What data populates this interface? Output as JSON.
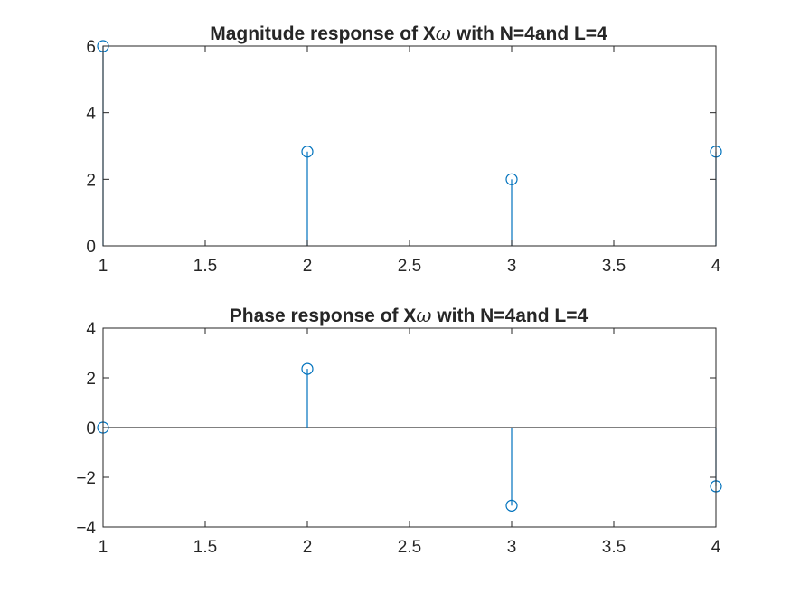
{
  "chart_data": [
    {
      "type": "stem",
      "title_prefix": "Magnitude response of X",
      "title_symbol": "ω",
      "title_suffix": " with N=4and L=4",
      "xlabel": "",
      "ylabel": "",
      "xlim": [
        1,
        4
      ],
      "ylim": [
        0,
        6
      ],
      "x_ticks": [
        "1",
        "1.5",
        "2",
        "2.5",
        "3",
        "3.5",
        "4"
      ],
      "y_ticks": [
        "0",
        "2",
        "4",
        "6"
      ],
      "x": [
        1,
        2,
        3,
        4
      ],
      "values": [
        6,
        2.83,
        2,
        2.83
      ],
      "baseline": 0,
      "grid": false,
      "color": "#0072bd"
    },
    {
      "type": "stem",
      "title_prefix": "Phase response of X",
      "title_symbol": "ω",
      "title_suffix": " with N=4and L=4",
      "xlabel": "",
      "ylabel": "",
      "xlim": [
        1,
        4
      ],
      "ylim": [
        -4,
        4
      ],
      "x_ticks": [
        "1",
        "1.5",
        "2",
        "2.5",
        "3",
        "3.5",
        "4"
      ],
      "y_ticks": [
        "−4",
        "−2",
        "0",
        "2",
        "4"
      ],
      "x": [
        1,
        2,
        3,
        4
      ],
      "values": [
        0,
        2.36,
        -3.14,
        -2.36
      ],
      "baseline": 0,
      "grid": false,
      "color": "#0072bd"
    }
  ]
}
